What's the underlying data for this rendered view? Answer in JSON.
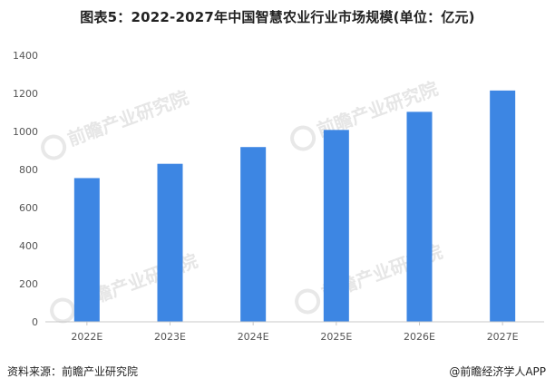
{
  "title": "图表5：2022-2027年中国智慧农业行业市场规模(单位：亿元)",
  "watermark_text": "前瞻产业研究院",
  "source": "资料来源：前瞻产业研究院",
  "credit": "@前瞻经济学人APP",
  "colors": {
    "bar": "#3d86e3",
    "axis": "#c8c8c8"
  },
  "chart_data": {
    "type": "bar",
    "title": "图表5：2022-2027年中国智慧农业行业市场规模(单位：亿元)",
    "categories": [
      "2022E",
      "2023E",
      "2024E",
      "2025E",
      "2026E",
      "2027E"
    ],
    "values": [
      755,
      830,
      918,
      1008,
      1103,
      1215
    ],
    "yticks": [
      0,
      200,
      400,
      600,
      800,
      1000,
      1200,
      1400
    ],
    "ylim": [
      0,
      1400
    ],
    "xlabel": "",
    "ylabel": "",
    "grid": false,
    "legend": "none"
  }
}
